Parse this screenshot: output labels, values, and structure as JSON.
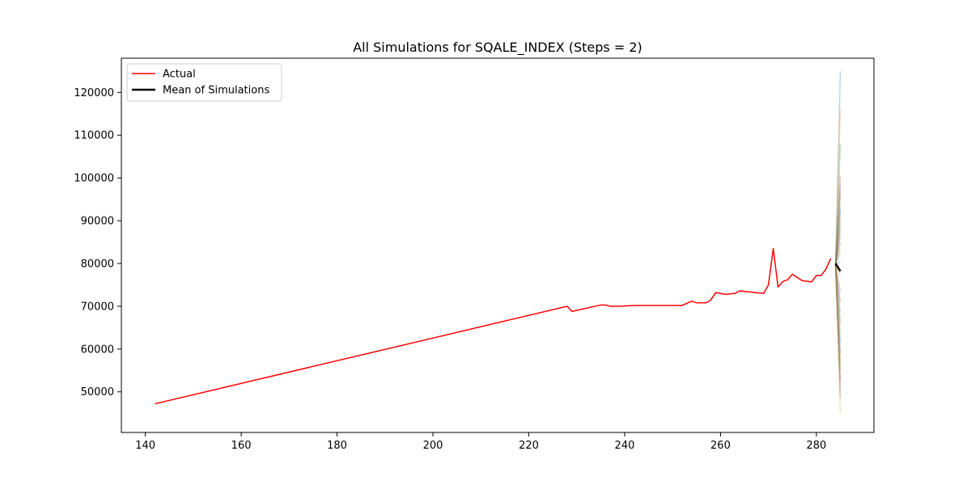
{
  "chart_data": {
    "type": "line",
    "title": "All Simulations for SQALE_INDEX (Steps = 2)",
    "xlabel": "",
    "ylabel": "",
    "xlim": [
      135,
      292
    ],
    "ylim": [
      40500,
      128000
    ],
    "xticks": [
      140,
      160,
      180,
      200,
      220,
      240,
      260,
      280
    ],
    "yticks": [
      50000,
      60000,
      70000,
      80000,
      90000,
      100000,
      110000,
      120000
    ],
    "grid": false,
    "legend_position": "top-left",
    "series": [
      {
        "name": "Actual",
        "color": "#ff0000",
        "x": [
          142,
          228,
          229,
          235,
          236,
          237,
          239,
          242,
          252,
          254,
          255,
          257,
          258,
          259,
          261,
          263,
          264,
          269,
          270,
          271,
          272,
          273,
          274,
          275,
          277,
          279,
          280,
          281,
          282,
          283
        ],
        "y": [
          47200,
          70000,
          68800,
          70300,
          70300,
          70000,
          70000,
          70200,
          70200,
          71200,
          70800,
          70800,
          71500,
          73200,
          72800,
          73000,
          73600,
          73000,
          75000,
          83500,
          74500,
          75800,
          76200,
          77500,
          76000,
          75700,
          77200,
          77200,
          78700,
          81200
        ]
      },
      {
        "name": "Mean of Simulations",
        "color": "#000000",
        "x": [
          284,
          285
        ],
        "y": [
          80000,
          78200
        ]
      }
    ],
    "simulations": {
      "x_start": 284,
      "x_end": 285,
      "y_start": 79500,
      "colors": [
        "#1f77b4",
        "#ff7f0e",
        "#2ca02c",
        "#d62728",
        "#9467bd",
        "#8c564b",
        "#bcbd22",
        "#17becf"
      ],
      "end_values": [
        125000,
        116000,
        108000,
        100500,
        98500,
        97000,
        95500,
        93500,
        92500,
        91000,
        89500,
        88000,
        86500,
        85000,
        83500,
        82500,
        80500,
        77000,
        73500,
        71000,
        68500,
        66000,
        63500,
        61500,
        59000,
        57000,
        55000,
        52500,
        50500,
        48500,
        45000
      ]
    }
  }
}
